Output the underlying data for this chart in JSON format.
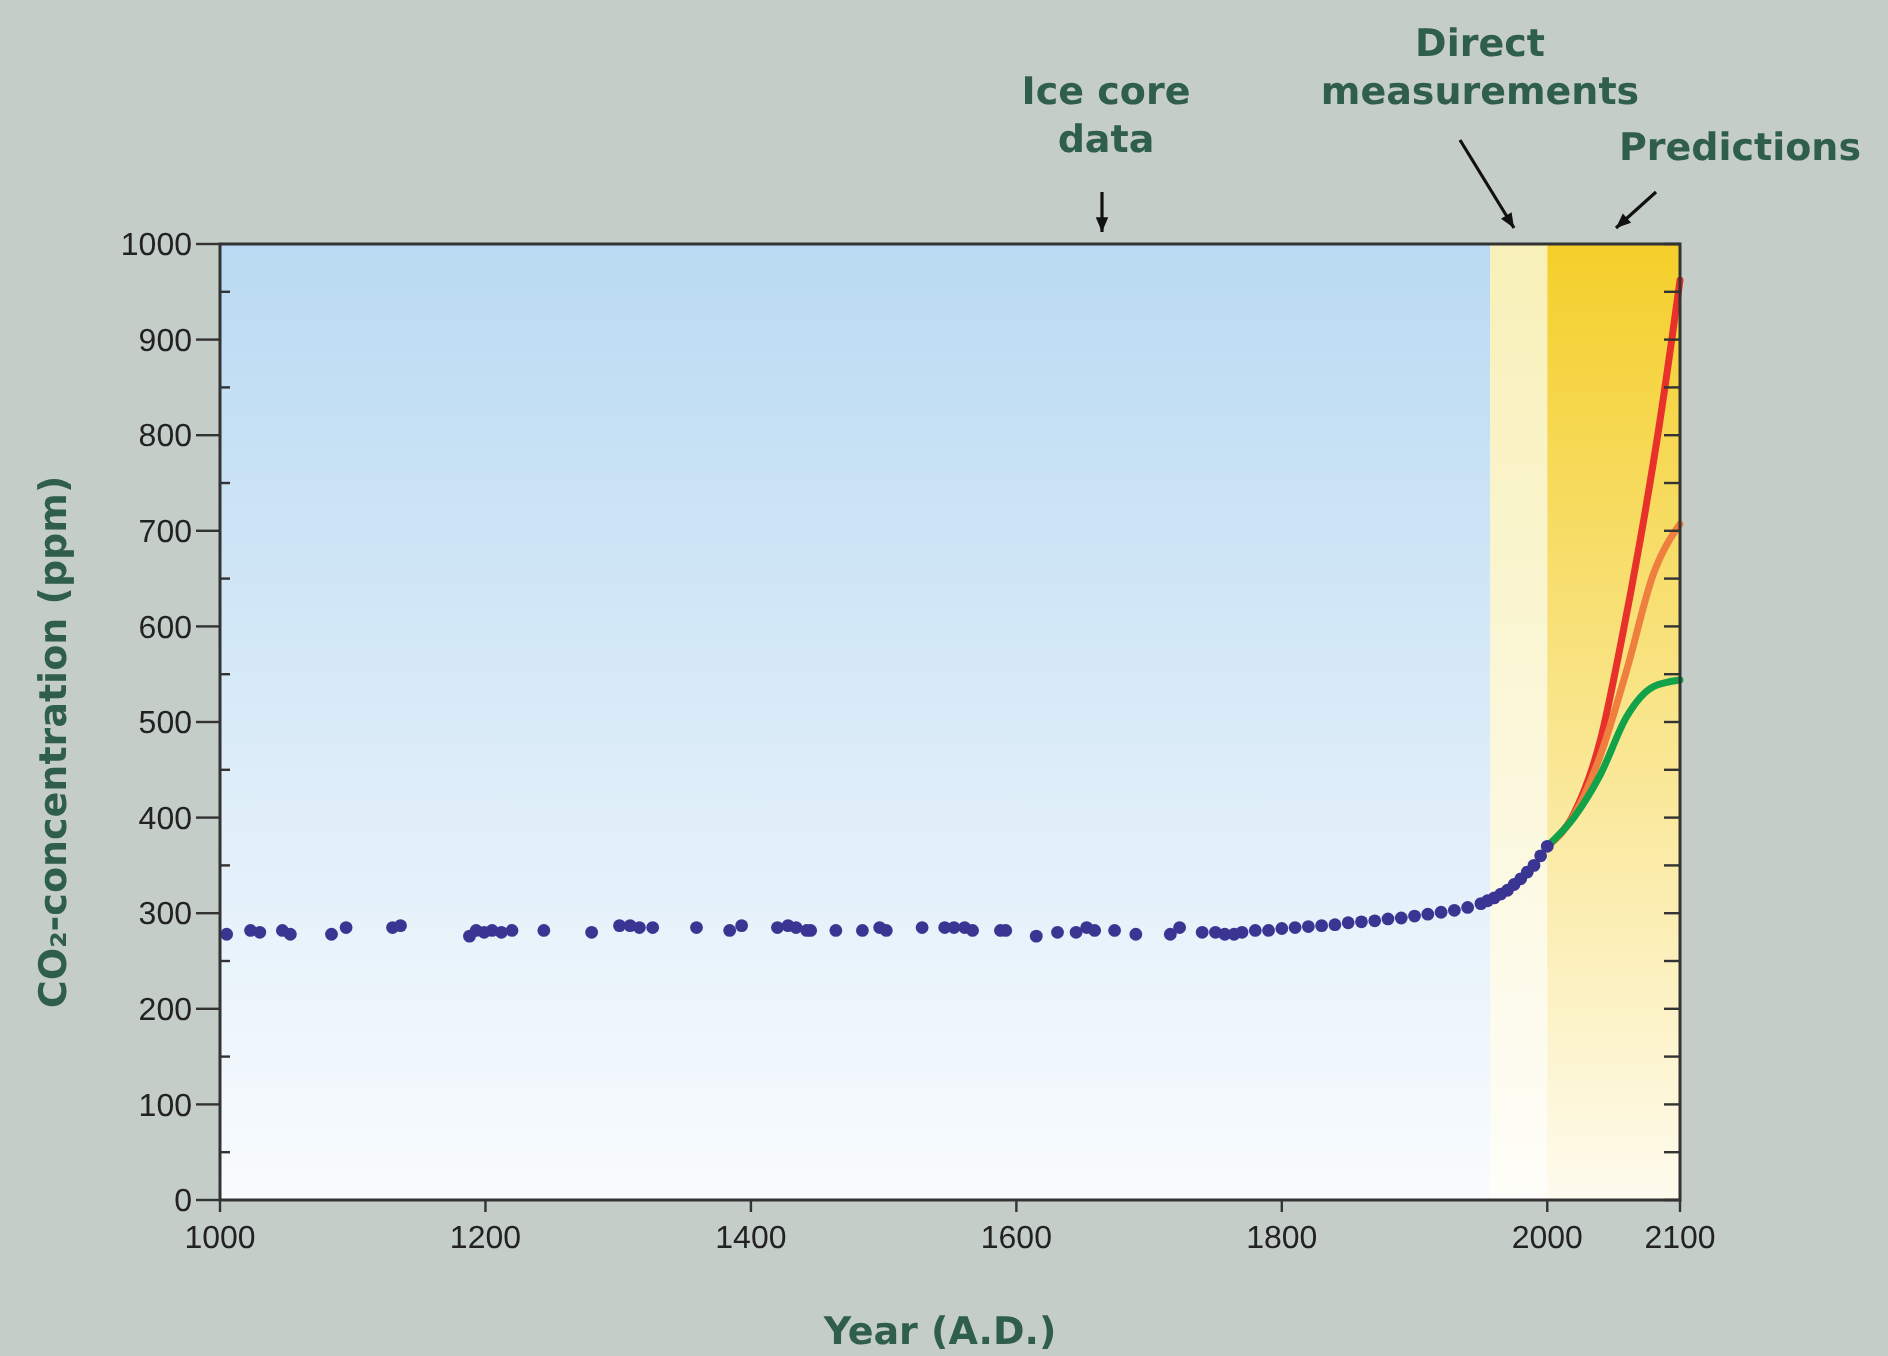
{
  "chart_data": {
    "type": "scatter",
    "xlabel": "Year (A.D.)",
    "ylabel": "CO₂-concentration (ppm)",
    "xlim": [
      1000,
      2100
    ],
    "ylim": [
      0,
      1000
    ],
    "xticks": [
      1000,
      1200,
      1400,
      1600,
      1800,
      2000,
      2100
    ],
    "yticks": [
      0,
      {
        "value": 50,
        "label": null
      },
      100,
      {
        "value": 150,
        "label": null
      },
      200,
      {
        "value": 250,
        "label": null
      },
      300,
      {
        "value": 350,
        "label": null
      },
      400,
      {
        "value": 450,
        "label": null
      },
      500,
      {
        "value": 550,
        "label": null
      },
      600,
      {
        "value": 650,
        "label": null
      },
      700,
      {
        "value": 750,
        "label": null
      },
      800,
      {
        "value": 850,
        "label": null
      },
      900,
      {
        "value": 950,
        "label": null
      },
      1000
    ],
    "grid": false,
    "bands": [
      {
        "axis": "x",
        "from": 1000,
        "to": 1957,
        "label": "Ice core data",
        "color": "#b9daf2"
      },
      {
        "axis": "x",
        "from": 1957,
        "to": 2000,
        "label": "Direct measurements",
        "color": "#f8f0b8"
      },
      {
        "axis": "x",
        "from": 2000,
        "to": 2100,
        "label": "Predictions",
        "color": "#f4cf2a"
      }
    ],
    "series": [
      {
        "type": "scatter",
        "marker": "circle",
        "color": "#3a3592",
        "x": [
          1005,
          1023,
          1030,
          1047,
          1053,
          1084,
          1095,
          1130,
          1136,
          1188,
          1193,
          1199,
          1205,
          1212,
          1220,
          1244,
          1280,
          1301,
          1309,
          1316,
          1326,
          1359,
          1384,
          1393,
          1420,
          1428,
          1434,
          1442,
          1445,
          1464,
          1484,
          1497,
          1502,
          1529,
          1546,
          1553,
          1561,
          1567,
          1588,
          1592,
          1615,
          1631,
          1645,
          1653,
          1659,
          1674,
          1690,
          1716,
          1723,
          1740,
          1750,
          1757,
          1764,
          1770,
          1780,
          1790,
          1800,
          1810,
          1820,
          1830,
          1840,
          1850,
          1860,
          1870,
          1880,
          1890,
          1900,
          1910,
          1920,
          1930,
          1940,
          1950,
          1955,
          1960,
          1965,
          1970,
          1975,
          1980,
          1985,
          1990,
          1995,
          2000
        ],
        "values": [
          278,
          282,
          280,
          282,
          278,
          278,
          285,
          285,
          287,
          276,
          282,
          280,
          282,
          280,
          282,
          282,
          280,
          287,
          287,
          285,
          285,
          285,
          282,
          287,
          285,
          287,
          285,
          282,
          282,
          282,
          282,
          285,
          282,
          285,
          285,
          285,
          285,
          282,
          282,
          282,
          276,
          280,
          280,
          285,
          282,
          282,
          278,
          278,
          285,
          280,
          280,
          278,
          278,
          280,
          282,
          282,
          284,
          285,
          286,
          287,
          288,
          290,
          291,
          292,
          294,
          295,
          297,
          299,
          301,
          303,
          306,
          310,
          313,
          316,
          320,
          324,
          330,
          336,
          343,
          350,
          360,
          370
        ]
      },
      {
        "type": "line",
        "marker": "none",
        "color": "#e8312a",
        "x": [
          2000,
          2020,
          2040,
          2055,
          2070,
          2085,
          2100
        ],
        "values": [
          370,
          404,
          481,
          579,
          690,
          816,
          962
        ]
      },
      {
        "type": "line",
        "marker": "none",
        "color": "#ef7f3e",
        "x": [
          2000,
          2020,
          2040,
          2060,
          2080,
          2100
        ],
        "values": [
          370,
          402,
          465,
          555,
          655,
          707
        ]
      },
      {
        "type": "line",
        "marker": "none",
        "color": "#12a24a",
        "x": [
          2000,
          2020,
          2040,
          2060,
          2080,
          2100
        ],
        "values": [
          370,
          400,
          445,
          506,
          537,
          544
        ]
      }
    ]
  }
}
